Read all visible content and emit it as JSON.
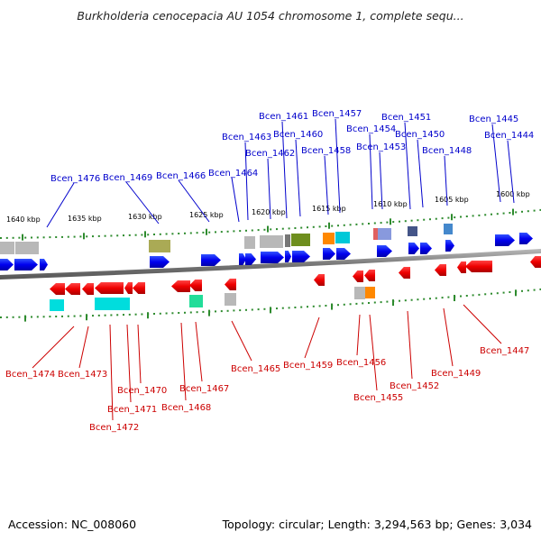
{
  "title": "Burkholderia cenocepacia AU 1054 chromosome 1, complete sequ...",
  "footer": {
    "accession": "Accession: NC_008060",
    "stats": "Topology: circular; Length: 3,294,563 bp; Genes: 3,034"
  },
  "colors": {
    "backbone": "#888888",
    "ticks": "#2e8b2e",
    "forward_label": "#0000cc",
    "reverse_label": "#cc0000"
  },
  "scale_labels": [
    "1640 kbp",
    "1635 kbp",
    "1630 kbp",
    "1625 kbp",
    "1620 kbp",
    "1615 kbp",
    "1610 kbp",
    "1605 kbp",
    "1600 kbp"
  ],
  "genes_forward": [
    "Bcen_1476",
    "Bcen_1469",
    "Bcen_1466",
    "Bcen_1464",
    "Bcen_1463",
    "Bcen_1462",
    "Bcen_1461",
    "Bcen_1460",
    "Bcen_1458",
    "Bcen_1457",
    "Bcen_1454",
    "Bcen_1453",
    "Bcen_1451",
    "Bcen_1450",
    "Bcen_1448",
    "Bcen_1445",
    "Bcen_1444"
  ],
  "genes_reverse": [
    "Bcen_1474",
    "Bcen_1473",
    "Bcen_1472",
    "Bcen_1471",
    "Bcen_1470",
    "Bcen_1468",
    "Bcen_1467",
    "Bcen_1465",
    "Bcen_1459",
    "Bcen_1456",
    "Bcen_1455",
    "Bcen_1452",
    "Bcen_1449",
    "Bcen_1447"
  ]
}
